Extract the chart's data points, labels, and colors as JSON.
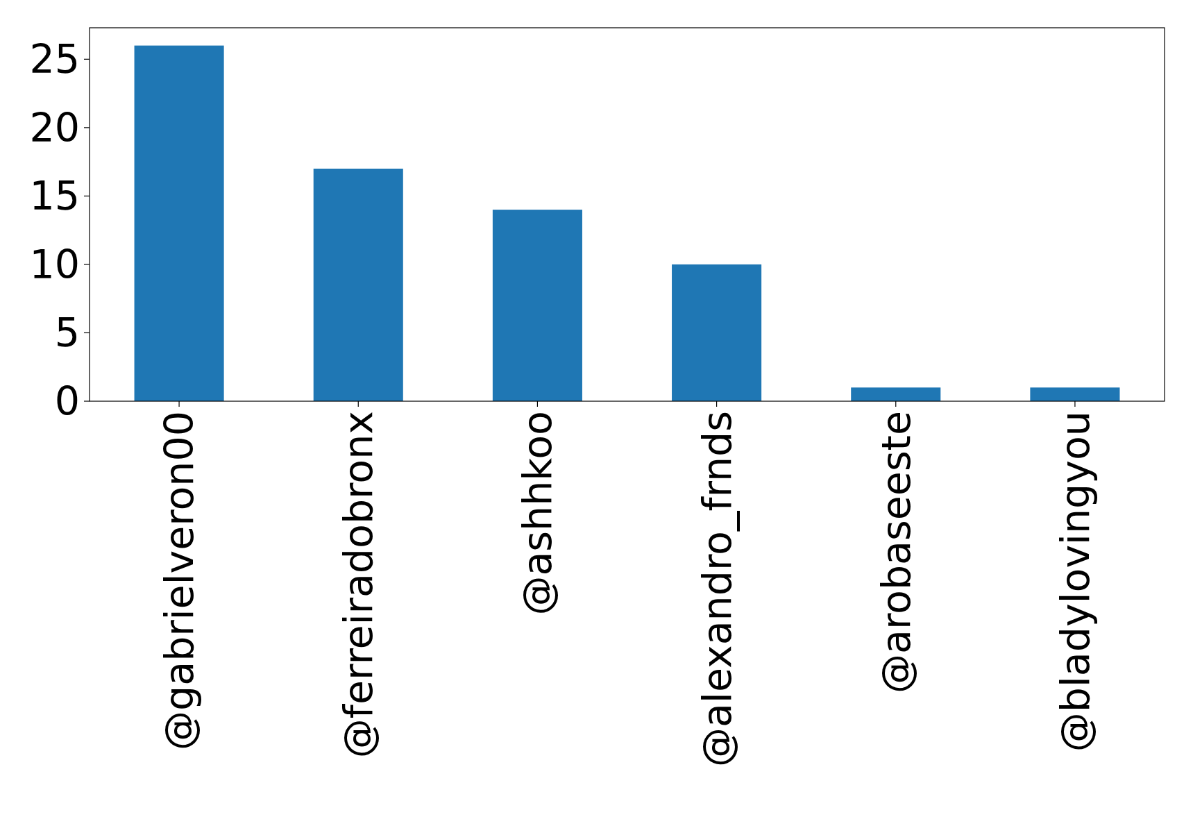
{
  "chart_data": {
    "type": "bar",
    "categories": [
      "@gabrielveron00",
      "@ferreiradobronx",
      "@ashhkoo",
      "@alexandro_frnds",
      "@arobaseeste",
      "@bladylovingyou"
    ],
    "values": [
      26,
      17,
      14,
      10,
      1,
      1
    ],
    "color": "#1f77b4",
    "ylim": [
      0,
      27.3
    ],
    "yticks": [
      0,
      5,
      10,
      15,
      20,
      25
    ],
    "grid": false
  }
}
